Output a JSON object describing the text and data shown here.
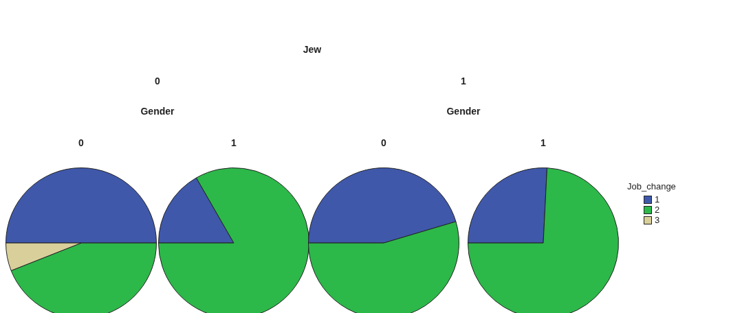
{
  "chart_data": [
    {
      "type": "pie",
      "title": "0",
      "annotations": [
        "Jew",
        "0",
        "Gender"
      ],
      "values": [
        50,
        44,
        6
      ],
      "colors": [
        "#3f58aa",
        "#2db84a",
        "#d8cf9a"
      ]
    },
    {
      "type": "pie",
      "title": "1",
      "values": [
        16.7,
        83.3,
        0
      ],
      "colors": [
        "#3f58aa",
        "#2db84a",
        "#d8cf9a"
      ]
    },
    {
      "type": "pie",
      "title": "0",
      "annotations": [
        "1",
        "Gender"
      ],
      "values": [
        45.4,
        54.6,
        0
      ],
      "colors": [
        "#3f58aa",
        "#2db84a",
        "#d8cf9a"
      ]
    },
    {
      "type": "pie",
      "title": "1",
      "categories": [
        "1",
        "2",
        "3"
      ],
      "values": [
        25.8,
        74.2,
        0
      ],
      "colors": [
        "#3f58aa",
        "#2db84a",
        "#d8cf9a"
      ],
      "legend": "right",
      "legend_title": "Job_change"
    }
  ]
}
